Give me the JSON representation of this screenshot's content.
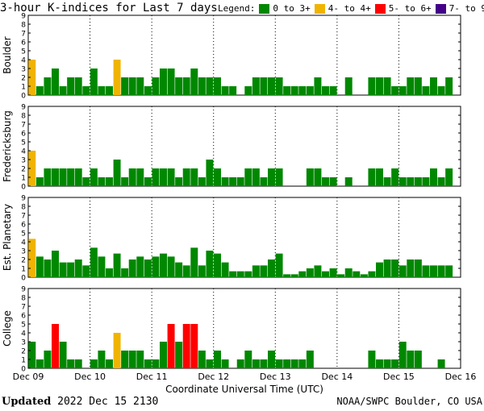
{
  "header": {
    "title": "3-hour K-indices for Last 7 days",
    "legend_title": "Legend:"
  },
  "legend": [
    {
      "label": "0 to 3+",
      "color": "#008800"
    },
    {
      "label": "4- to 4+",
      "color": "#f0b400"
    },
    {
      "label": "5- to 6+",
      "color": "#ff0000"
    },
    {
      "label": "7- to 9",
      "color": "#440088"
    }
  ],
  "footer": {
    "updated_label": "Updated",
    "updated_value": "2022 Dec 15 2130",
    "source": "NOAA/SWPC Boulder, CO USA"
  },
  "chart_data": {
    "type": "bar",
    "xlabel": "Coordinate Universal Time (UTC)",
    "x_ticks": [
      "Dec 09",
      "Dec 10",
      "Dec 11",
      "Dec 12",
      "Dec 13",
      "Dec 14",
      "Dec 15",
      "Dec 16"
    ],
    "ylim": [
      0,
      9
    ],
    "y_ticks": [
      0,
      1,
      2,
      3,
      4,
      5,
      6,
      7,
      8,
      9
    ],
    "bins_per_day": 8,
    "grid": "dotted vertical at day boundaries",
    "panels": [
      {
        "name": "Boulder",
        "values": [
          4,
          1,
          2,
          3,
          1,
          2,
          2,
          1,
          3,
          1,
          1,
          4,
          2,
          2,
          2,
          1,
          2,
          3,
          3,
          2,
          2,
          3,
          2,
          2,
          2,
          1,
          1,
          0,
          1,
          2,
          2,
          2,
          2,
          1,
          1,
          1,
          1,
          2,
          1,
          1,
          0,
          2,
          0,
          0,
          2,
          2,
          2,
          1,
          1,
          2,
          2,
          1,
          2,
          1,
          2,
          0
        ]
      },
      {
        "name": "Fredericksburg",
        "values": [
          4,
          1,
          2,
          2,
          2,
          2,
          2,
          1,
          2,
          1,
          1,
          3,
          1,
          2,
          2,
          1,
          2,
          2,
          2,
          1,
          2,
          2,
          1,
          3,
          2,
          1,
          1,
          1,
          2,
          2,
          1,
          2,
          2,
          0,
          0,
          0,
          2,
          2,
          1,
          1,
          0,
          1,
          0,
          0,
          2,
          2,
          1,
          2,
          1,
          1,
          1,
          1,
          2,
          1,
          2,
          0
        ]
      },
      {
        "name": "Est. Planetary",
        "values": [
          4.33,
          2.33,
          2,
          3,
          1.67,
          1.67,
          2,
          1.33,
          3.33,
          2.33,
          1,
          2.67,
          1,
          2,
          2.33,
          2,
          2.33,
          2.67,
          2.33,
          1.67,
          1.33,
          3.33,
          1.33,
          3,
          2.67,
          1.67,
          0.67,
          0.67,
          0.67,
          1.33,
          1.33,
          2,
          2.67,
          0.33,
          0.33,
          0.67,
          1,
          1.33,
          0.67,
          1,
          0.33,
          1,
          0.67,
          0.33,
          0.67,
          1.67,
          2,
          2,
          1.33,
          2,
          2,
          1.33,
          1.33,
          1.33,
          1.33,
          0
        ]
      },
      {
        "name": "College",
        "values": [
          3,
          1,
          2,
          5,
          3,
          1,
          1,
          0,
          1,
          2,
          1,
          4,
          2,
          2,
          2,
          1,
          1,
          3,
          5,
          3,
          5,
          5,
          2,
          1,
          2,
          1,
          0,
          1,
          2,
          1,
          1,
          2,
          1,
          1,
          1,
          1,
          2,
          0,
          0,
          0,
          0,
          0,
          0,
          0,
          2,
          1,
          1,
          1,
          3,
          2,
          2,
          0,
          0,
          1,
          0,
          0
        ]
      }
    ]
  }
}
